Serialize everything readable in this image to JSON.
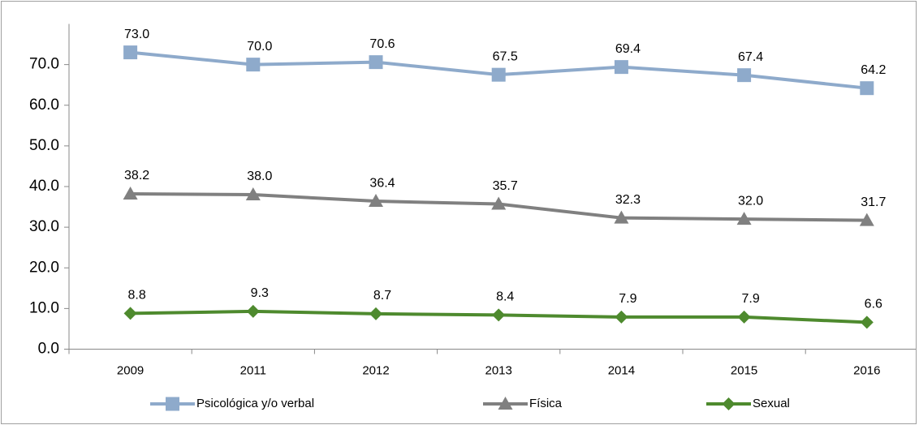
{
  "chart_data": {
    "type": "line",
    "categories": [
      "2009",
      "2011",
      "2012",
      "2013",
      "2014",
      "2015",
      "2016"
    ],
    "series": [
      {
        "name": "Psicológica y/o verbal",
        "color": "#8eaacb",
        "marker": "square",
        "values": [
          73.0,
          70.0,
          70.6,
          67.5,
          69.4,
          67.4,
          64.2
        ],
        "value_labels": [
          "73.0",
          "70.0",
          "70.6",
          "67.5",
          "69.4",
          "67.4",
          "64.2"
        ]
      },
      {
        "name": "Física",
        "color": "#808080",
        "marker": "triangle",
        "values": [
          38.2,
          38.0,
          36.4,
          35.7,
          32.3,
          32.0,
          31.7
        ],
        "value_labels": [
          "38.2",
          "38.0",
          "36.4",
          "35.7",
          "32.3",
          "32.0",
          "31.7"
        ]
      },
      {
        "name": "Sexual",
        "color": "#4e8a2e",
        "marker": "diamond",
        "values": [
          8.8,
          9.3,
          8.7,
          8.4,
          7.9,
          7.9,
          6.6
        ],
        "value_labels": [
          "8.8",
          "9.3",
          "8.7",
          "8.4",
          "7.9",
          "7.9",
          "6.6"
        ]
      }
    ],
    "ylim": [
      0,
      80
    ],
    "yticks": [
      {
        "value": 0,
        "label": "0.0"
      },
      {
        "value": 10,
        "label": "10.0"
      },
      {
        "value": 20,
        "label": "20.0"
      },
      {
        "value": 30,
        "label": "30.0"
      },
      {
        "value": 40,
        "label": "40.0"
      },
      {
        "value": 50,
        "label": "50.0"
      },
      {
        "value": 60,
        "label": "60.0"
      },
      {
        "value": 70,
        "label": "70.0"
      }
    ],
    "grid": false,
    "legend": "bottom"
  }
}
